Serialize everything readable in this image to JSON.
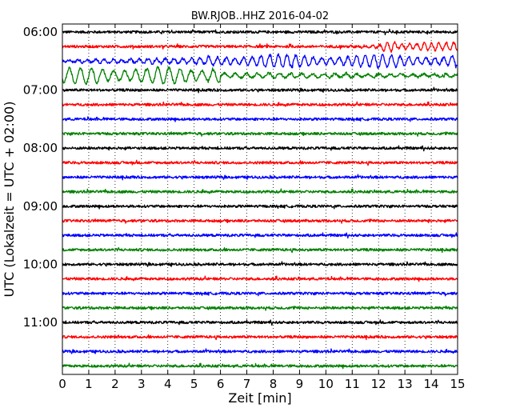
{
  "chart_data": {
    "type": "line",
    "title": "BW.RJOB..HHZ 2016-04-02",
    "xlabel": "Zeit  [min]",
    "ylabel": "UTC (Lokalzeit = UTC + 02:00)",
    "xlim": [
      0,
      15
    ],
    "x_ticks": [
      "0",
      "1",
      "2",
      "3",
      "4",
      "5",
      "6",
      "7",
      "8",
      "9",
      "10",
      "11",
      "12",
      "13",
      "14",
      "15"
    ],
    "y_ticks": [
      "06:00",
      "07:00",
      "08:00",
      "09:00",
      "10:00",
      "11:00"
    ],
    "grid": "vertical dotted",
    "minutes_per_trace": 15,
    "trace_colors": [
      "#000000",
      "#ff0000",
      "#0000ff",
      "#008000"
    ],
    "traces": [
      {
        "start": "06:00",
        "color": "#000000",
        "level": "noise"
      },
      {
        "start": "06:15",
        "color": "#ff0000",
        "level": "noise, growing swell after 11 min, peak near 12.4 min"
      },
      {
        "start": "06:30",
        "color": "#0000ff",
        "level": "large long-period oscillations after 6 min"
      },
      {
        "start": "06:45",
        "color": "#008000",
        "level": "large long-period oscillations, largest 0-6 min"
      },
      {
        "start": "07:00",
        "color": "#000000",
        "level": "noise"
      },
      {
        "start": "07:15",
        "color": "#ff0000",
        "level": "noise"
      },
      {
        "start": "07:30",
        "color": "#0000ff",
        "level": "noise"
      },
      {
        "start": "07:45",
        "color": "#008000",
        "level": "noise"
      },
      {
        "start": "08:00",
        "color": "#000000",
        "level": "noise"
      },
      {
        "start": "08:15",
        "color": "#ff0000",
        "level": "noise"
      },
      {
        "start": "08:30",
        "color": "#0000ff",
        "level": "noise"
      },
      {
        "start": "08:45",
        "color": "#008000",
        "level": "noise"
      },
      {
        "start": "09:00",
        "color": "#000000",
        "level": "noise"
      },
      {
        "start": "09:15",
        "color": "#ff0000",
        "level": "noise"
      },
      {
        "start": "09:30",
        "color": "#0000ff",
        "level": "noise"
      },
      {
        "start": "09:45",
        "color": "#008000",
        "level": "noise"
      },
      {
        "start": "10:00",
        "color": "#000000",
        "level": "noise"
      },
      {
        "start": "10:15",
        "color": "#ff0000",
        "level": "noise"
      },
      {
        "start": "10:30",
        "color": "#0000ff",
        "level": "noise"
      },
      {
        "start": "10:45",
        "color": "#008000",
        "level": "noise"
      },
      {
        "start": "11:00",
        "color": "#000000",
        "level": "noise"
      },
      {
        "start": "11:15",
        "color": "#ff0000",
        "level": "noise"
      },
      {
        "start": "11:30",
        "color": "#0000ff",
        "level": "noise"
      },
      {
        "start": "11:45",
        "color": "#008000",
        "level": "noise"
      }
    ]
  }
}
